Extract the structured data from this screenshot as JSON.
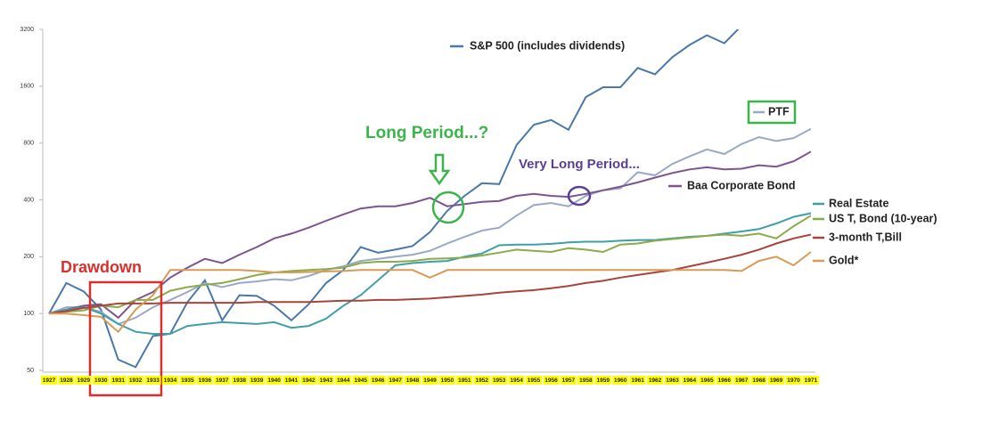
{
  "chart_data": {
    "type": "line",
    "log_scale": true,
    "categories": [
      "1927",
      "1928",
      "1929",
      "1930",
      "1931",
      "1932",
      "1933",
      "1934",
      "1935",
      "1936",
      "1937",
      "1938",
      "1939",
      "1940",
      "1941",
      "1942",
      "1943",
      "1944",
      "1945",
      "1946",
      "1947",
      "1948",
      "1949",
      "1950",
      "1951",
      "1952",
      "1953",
      "1954",
      "1955",
      "1956",
      "1957",
      "1958",
      "1959",
      "1960",
      "1961",
      "1962",
      "1963",
      "1964",
      "1965",
      "1966",
      "1967",
      "1968",
      "1969",
      "1970",
      "1971"
    ],
    "ylim": [
      50,
      3200
    ],
    "yticks": [
      50,
      100,
      200,
      400,
      800,
      1600,
      3200
    ],
    "annotations": [
      "Long Period...?",
      "Very Long Period...",
      "Drawdown"
    ],
    "series": [
      {
        "name": "S&P 500 (includes dividends)",
        "color": "#4a78a8",
        "values": [
          100,
          145,
          131,
          105,
          57,
          52,
          76,
          78,
          115,
          150,
          92,
          125,
          124,
          110,
          92,
          112,
          145,
          170,
          225,
          210,
          218,
          228,
          270,
          350,
          420,
          490,
          485,
          780,
          1000,
          1060,
          940,
          1400,
          1580,
          1580,
          2000,
          1850,
          2280,
          2650,
          2980,
          2700,
          3350,
          null,
          null,
          null,
          null
        ]
      },
      {
        "name": "PTF",
        "color": "#9aa8c8",
        "values": [
          100,
          108,
          108,
          102,
          88,
          95,
          108,
          118,
          130,
          145,
          138,
          145,
          148,
          152,
          150,
          158,
          170,
          178,
          190,
          195,
          200,
          205,
          215,
          235,
          255,
          275,
          285,
          330,
          375,
          385,
          370,
          420,
          450,
          460,
          560,
          540,
          620,
          680,
          740,
          700,
          790,
          860,
          820,
          850,
          950
        ]
      },
      {
        "name": "Baa Corporate Bond",
        "color": "#7b5490",
        "values": [
          100,
          105,
          110,
          112,
          95,
          118,
          130,
          155,
          175,
          195,
          185,
          205,
          225,
          250,
          265,
          285,
          310,
          335,
          360,
          370,
          370,
          385,
          410,
          370,
          380,
          390,
          395,
          420,
          430,
          420,
          415,
          430,
          450,
          470,
          495,
          525,
          555,
          580,
          595,
          580,
          585,
          610,
          600,
          640,
          720
        ]
      },
      {
        "name": "Real Estate",
        "color": "#3f9ea8",
        "values": [
          100,
          105,
          108,
          100,
          88,
          80,
          78,
          78,
          86,
          88,
          90,
          89,
          88,
          90,
          84,
          86,
          94,
          110,
          125,
          150,
          180,
          185,
          188,
          190,
          200,
          208,
          230,
          232,
          232,
          234,
          238,
          240,
          240,
          243,
          245,
          245,
          250,
          255,
          258,
          265,
          272,
          280,
          300,
          325,
          340
        ]
      },
      {
        "name": "US T, Bond (10-year)",
        "color": "#8aab4a",
        "values": [
          100,
          102,
          104,
          110,
          108,
          118,
          118,
          132,
          138,
          142,
          145,
          152,
          160,
          165,
          168,
          170,
          172,
          175,
          185,
          188,
          188,
          190,
          195,
          196,
          198,
          203,
          210,
          218,
          215,
          212,
          222,
          218,
          212,
          232,
          235,
          243,
          248,
          253,
          258,
          262,
          258,
          265,
          250,
          290,
          330
        ]
      },
      {
        "name": "3-month T,Bill",
        "color": "#a8443c",
        "values": [
          100,
          103,
          107,
          110,
          113,
          113,
          113,
          114,
          114,
          114,
          114,
          114,
          115,
          115,
          115,
          115,
          116,
          117,
          117,
          118,
          118,
          119,
          120,
          122,
          124,
          126,
          129,
          131,
          133,
          136,
          140,
          145,
          149,
          155,
          160,
          165,
          170,
          178,
          186,
          195,
          205,
          218,
          235,
          250,
          262
        ]
      },
      {
        "name": "Gold*",
        "color": "#d99a55",
        "values": [
          100,
          100,
          98,
          96,
          80,
          105,
          125,
          170,
          170,
          170,
          170,
          170,
          168,
          165,
          165,
          166,
          167,
          168,
          170,
          170,
          170,
          170,
          155,
          170,
          170,
          170,
          170,
          170,
          170,
          170,
          170,
          170,
          170,
          170,
          170,
          170,
          170,
          170,
          170,
          170,
          168,
          190,
          200,
          180,
          212
        ]
      }
    ]
  }
}
